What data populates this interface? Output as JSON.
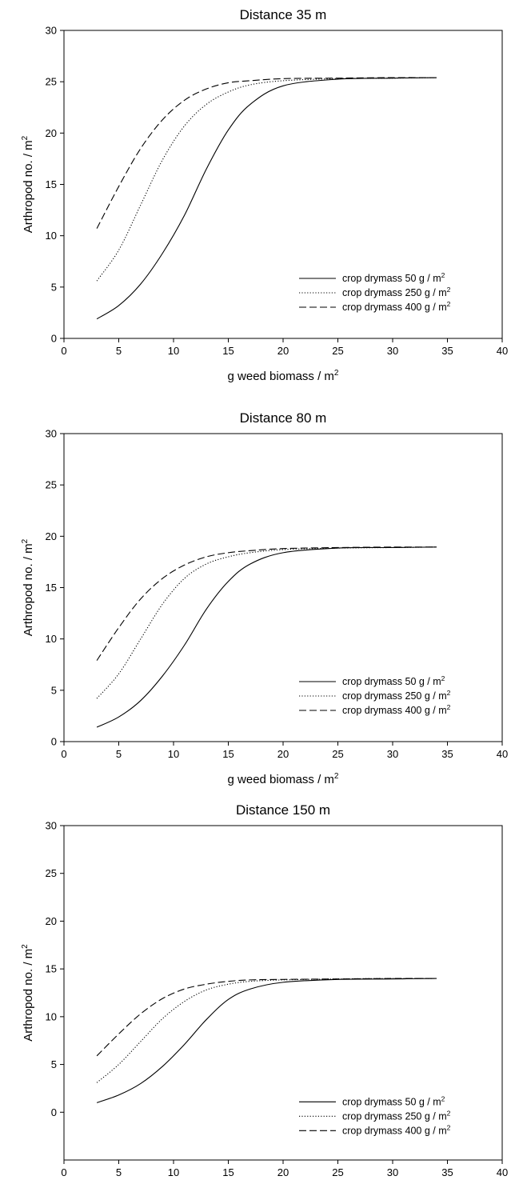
{
  "chart_data": [
    {
      "type": "line",
      "title": "Distance 35 m",
      "xlabel": "g weed biomass / m",
      "xlabel_sup": "2",
      "ylabel": "Arthropod no. / m",
      "ylabel_sup": "2",
      "xlim": [
        0,
        40
      ],
      "ylim": [
        0,
        30
      ],
      "xticks": [
        0,
        5,
        10,
        15,
        20,
        25,
        30,
        35,
        40
      ],
      "yticks": [
        0,
        5,
        10,
        15,
        20,
        25,
        30
      ],
      "grid": false,
      "legend_position": "bottom-right",
      "x": [
        3,
        5,
        7,
        9,
        11,
        13,
        15,
        17,
        20,
        25,
        30,
        34
      ],
      "series": [
        {
          "name": "crop drymass 50 g / m",
          "name_sup": "2",
          "style": "solid",
          "values": [
            1.9,
            3.2,
            5.3,
            8.3,
            12.0,
            16.5,
            20.3,
            22.8,
            24.6,
            25.25,
            25.35,
            25.4
          ]
        },
        {
          "name": "crop drymass 250 g / m",
          "name_sup": "2",
          "style": "dotted",
          "values": [
            5.6,
            8.6,
            13.0,
            17.4,
            20.7,
            22.8,
            24.0,
            24.7,
            25.1,
            25.3,
            25.35,
            25.4
          ]
        },
        {
          "name": "crop drymass 400 g / m",
          "name_sup": "2",
          "style": "dashed",
          "values": [
            10.7,
            14.8,
            18.5,
            21.3,
            23.2,
            24.3,
            24.9,
            25.1,
            25.3,
            25.35,
            25.4,
            25.4
          ]
        }
      ]
    },
    {
      "type": "line",
      "title": "Distance 80 m",
      "xlabel": "g weed biomass / m",
      "xlabel_sup": "2",
      "ylabel": "Arthropod no. / m",
      "ylabel_sup": "2",
      "xlim": [
        0,
        40
      ],
      "ylim": [
        0,
        30
      ],
      "xticks": [
        0,
        5,
        10,
        15,
        20,
        25,
        30,
        35,
        40
      ],
      "yticks": [
        0,
        5,
        10,
        15,
        20,
        25,
        30
      ],
      "grid": false,
      "legend_position": "bottom-right",
      "x": [
        3,
        5,
        7,
        9,
        11,
        13,
        15,
        17,
        20,
        25,
        30,
        34
      ],
      "series": [
        {
          "name": "crop drymass 50 g / m",
          "name_sup": "2",
          "style": "solid",
          "values": [
            1.4,
            2.4,
            4.0,
            6.4,
            9.4,
            12.9,
            15.6,
            17.3,
            18.4,
            18.85,
            18.9,
            18.95
          ]
        },
        {
          "name": "crop drymass 250 g / m",
          "name_sup": "2",
          "style": "dotted",
          "values": [
            4.2,
            6.6,
            10.0,
            13.4,
            15.9,
            17.3,
            18.0,
            18.4,
            18.7,
            18.85,
            18.9,
            18.95
          ]
        },
        {
          "name": "crop drymass 400 g / m",
          "name_sup": "2",
          "style": "dashed",
          "values": [
            7.9,
            11.1,
            13.9,
            15.9,
            17.2,
            18.0,
            18.4,
            18.6,
            18.8,
            18.9,
            18.95,
            18.95
          ]
        }
      ]
    },
    {
      "type": "line",
      "title": "Distance 150 m",
      "xlabel": "g weed biomass / m",
      "xlabel_sup": "2",
      "ylabel": "Arthropod no. / m",
      "ylabel_sup": "2",
      "xlim": [
        0,
        40
      ],
      "ylim": [
        -5,
        30
      ],
      "xticks": [
        0,
        5,
        10,
        15,
        20,
        25,
        30,
        35,
        40
      ],
      "yticks": [
        0,
        5,
        10,
        15,
        20,
        25,
        30
      ],
      "grid": false,
      "legend_position": "bottom-right",
      "x": [
        3,
        5,
        7,
        9,
        11,
        13,
        15,
        17,
        20,
        25,
        30,
        34
      ],
      "series": [
        {
          "name": "crop drymass 50 g / m",
          "name_sup": "2",
          "style": "solid",
          "values": [
            1.0,
            1.8,
            3.0,
            4.8,
            7.1,
            9.7,
            11.8,
            12.9,
            13.6,
            13.9,
            13.95,
            14.0
          ]
        },
        {
          "name": "crop drymass 250 g / m",
          "name_sup": "2",
          "style": "dotted",
          "values": [
            3.1,
            5.0,
            7.4,
            9.8,
            11.6,
            12.8,
            13.4,
            13.7,
            13.85,
            13.95,
            14.0,
            14.0
          ]
        },
        {
          "name": "crop drymass 400 g / m",
          "name_sup": "2",
          "style": "dashed",
          "values": [
            5.9,
            8.2,
            10.3,
            11.9,
            12.9,
            13.4,
            13.7,
            13.85,
            13.9,
            13.95,
            14.0,
            14.0
          ]
        }
      ]
    }
  ]
}
